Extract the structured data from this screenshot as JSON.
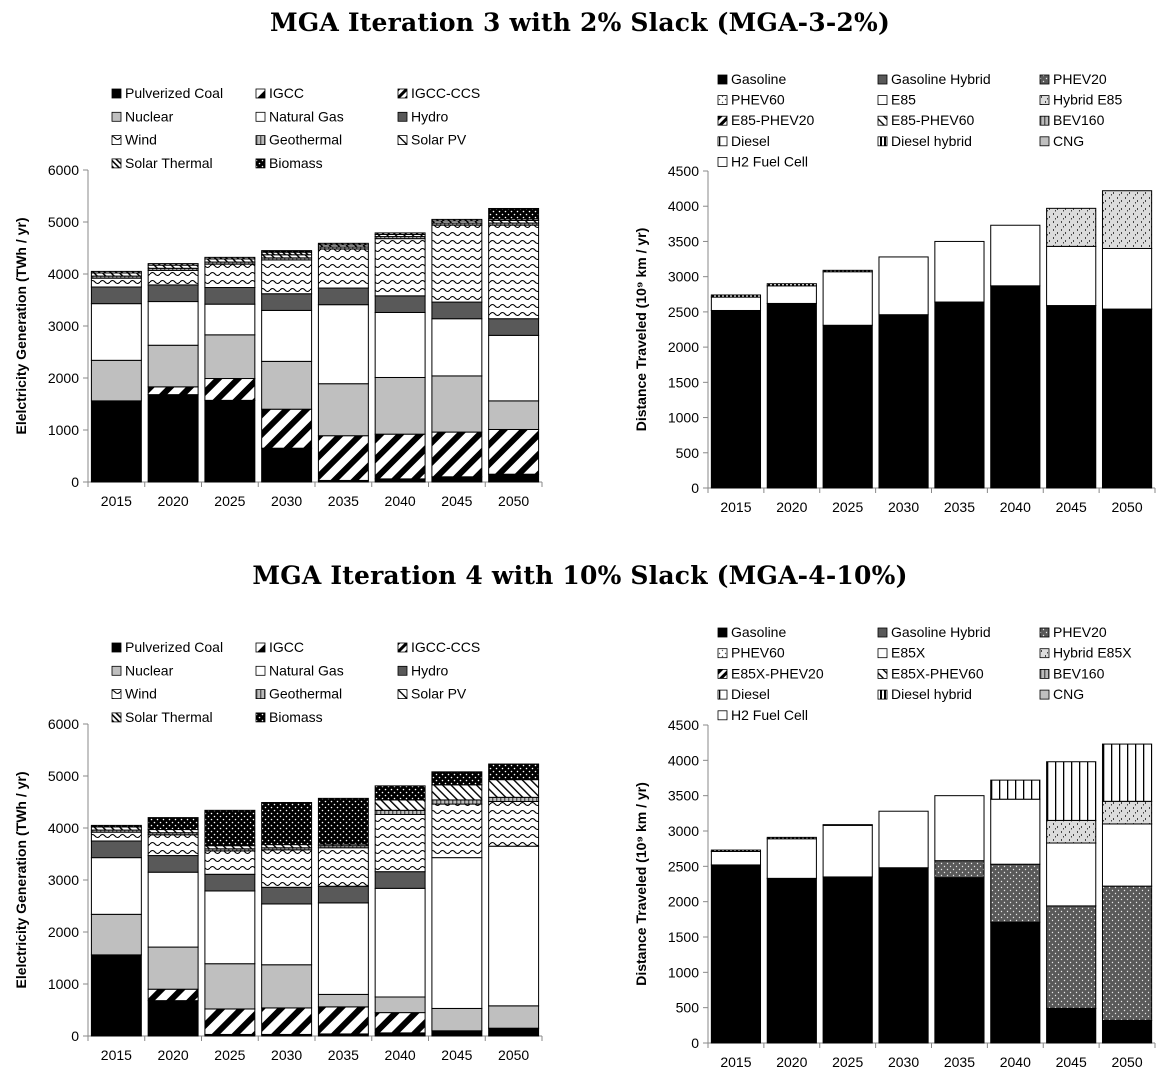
{
  "titles": {
    "top": "MGA Iteration 3 with 2% Slack (MGA-3-2%)",
    "bottom": "MGA Iteration 4 with 10% Slack (MGA-4-10%)"
  },
  "chart_data": [
    {
      "id": "elec-top",
      "type": "bar",
      "stacked": true,
      "title": "",
      "xlabel": "",
      "ylabel": "Elelctricity Generation (TWh / yr)",
      "ylim": [
        0,
        6000
      ],
      "yticks": [
        0,
        1000,
        2000,
        3000,
        4000,
        5000,
        6000
      ],
      "categories": [
        "2015",
        "2020",
        "2025",
        "2030",
        "2035",
        "2040",
        "2045",
        "2050"
      ],
      "legend_position": "top",
      "series": [
        {
          "name": "Pulverized Coal",
          "pattern": "solid-black",
          "values": [
            1560,
            1680,
            1570,
            650,
            30,
            60,
            100,
            150
          ]
        },
        {
          "name": "IGCC",
          "pattern": "diag-wide",
          "values": [
            0,
            150,
            420,
            750,
            860,
            860,
            860,
            860
          ]
        },
        {
          "name": "IGCC-CCS",
          "pattern": "diag-dense",
          "values": [
            0,
            0,
            0,
            0,
            0,
            0,
            0,
            0
          ]
        },
        {
          "name": "Nuclear",
          "pattern": "solid-lightgray",
          "values": [
            780,
            800,
            840,
            920,
            1000,
            1090,
            1080,
            550
          ]
        },
        {
          "name": "Natural Gas",
          "pattern": "solid-white",
          "values": [
            1090,
            840,
            590,
            980,
            1520,
            1250,
            1100,
            1260
          ]
        },
        {
          "name": "Hydro",
          "pattern": "solid-darkgray",
          "values": [
            320,
            320,
            320,
            320,
            320,
            320,
            320,
            320
          ]
        },
        {
          "name": "Wind",
          "pattern": "wave",
          "values": [
            170,
            280,
            450,
            650,
            750,
            1100,
            1480,
            1800
          ]
        },
        {
          "name": "Geothermal",
          "pattern": "vert-gray",
          "values": [
            40,
            40,
            40,
            40,
            40,
            40,
            40,
            40
          ]
        },
        {
          "name": "Solar PV",
          "pattern": "diag-back",
          "values": [
            60,
            60,
            60,
            60,
            40,
            40,
            40,
            50
          ]
        },
        {
          "name": "Solar Thermal",
          "pattern": "diag-back-dense",
          "values": [
            30,
            30,
            30,
            50,
            30,
            30,
            30,
            30
          ]
        },
        {
          "name": "Biomass",
          "pattern": "dots-black",
          "values": [
            0,
            0,
            0,
            30,
            0,
            0,
            0,
            200
          ]
        }
      ]
    },
    {
      "id": "vmt-top",
      "type": "bar",
      "stacked": true,
      "title": "",
      "xlabel": "",
      "ylabel": "Distance Traveled (10⁹ km / yr)",
      "ylim": [
        0,
        4500
      ],
      "yticks": [
        0,
        500,
        1000,
        1500,
        2000,
        2500,
        3000,
        3500,
        4000,
        4500
      ],
      "categories": [
        "2015",
        "2020",
        "2025",
        "2030",
        "2035",
        "2040",
        "2045",
        "2050"
      ],
      "legend_position": "top",
      "series": [
        {
          "name": "Gasoline",
          "pattern": "solid-black",
          "values": [
            2520,
            2620,
            2310,
            2460,
            2640,
            2870,
            2590,
            2540
          ]
        },
        {
          "name": "Gasoline Hybrid",
          "pattern": "solid-darkgray",
          "values": [
            0,
            0,
            0,
            0,
            0,
            0,
            0,
            0
          ]
        },
        {
          "name": "PHEV20",
          "pattern": "dots-gray",
          "values": [
            0,
            0,
            0,
            0,
            0,
            0,
            0,
            0
          ]
        },
        {
          "name": "PHEV60",
          "pattern": "dots-white",
          "values": [
            0,
            0,
            0,
            0,
            0,
            0,
            0,
            0
          ]
        },
        {
          "name": "E85",
          "pattern": "solid-white",
          "values": [
            190,
            250,
            760,
            820,
            860,
            860,
            840,
            860
          ]
        },
        {
          "name": "Hybrid E85",
          "pattern": "speckle",
          "values": [
            0,
            0,
            0,
            0,
            0,
            0,
            540,
            820
          ]
        },
        {
          "name": "E85-PHEV20",
          "pattern": "diag-dense",
          "values": [
            0,
            0,
            0,
            0,
            0,
            0,
            0,
            0
          ]
        },
        {
          "name": "E85-PHEV60",
          "pattern": "diag-back",
          "values": [
            0,
            0,
            0,
            0,
            0,
            0,
            0,
            0
          ]
        },
        {
          "name": "BEV160",
          "pattern": "vert-gray",
          "values": [
            0,
            0,
            0,
            0,
            0,
            0,
            0,
            0
          ]
        },
        {
          "name": "Diesel",
          "pattern": "vert-lines",
          "values": [
            0,
            0,
            0,
            0,
            0,
            0,
            0,
            0
          ]
        },
        {
          "name": "Diesel hybrid",
          "pattern": "vert-dense",
          "values": [
            30,
            30,
            20,
            0,
            0,
            0,
            0,
            0
          ]
        },
        {
          "name": "CNG",
          "pattern": "solid-lightgray",
          "values": [
            0,
            0,
            0,
            0,
            0,
            0,
            0,
            0
          ]
        },
        {
          "name": "H2 Fuel Cell",
          "pattern": "solid-white",
          "values": [
            0,
            0,
            0,
            0,
            0,
            0,
            0,
            0
          ]
        }
      ]
    },
    {
      "id": "elec-bottom",
      "type": "bar",
      "stacked": true,
      "title": "",
      "xlabel": "",
      "ylabel": "Elelctricity Generation (TWh / yr)",
      "ylim": [
        0,
        6000
      ],
      "yticks": [
        0,
        1000,
        2000,
        3000,
        4000,
        5000,
        6000
      ],
      "categories": [
        "2015",
        "2020",
        "2025",
        "2030",
        "2035",
        "2040",
        "2045",
        "2050"
      ],
      "legend_position": "top",
      "series": [
        {
          "name": "Pulverized Coal",
          "pattern": "solid-black",
          "values": [
            1560,
            680,
            30,
            30,
            40,
            60,
            100,
            150
          ]
        },
        {
          "name": "IGCC",
          "pattern": "diag-wide",
          "values": [
            0,
            220,
            490,
            510,
            520,
            390,
            0,
            0
          ]
        },
        {
          "name": "IGCC-CCS",
          "pattern": "diag-dense",
          "values": [
            0,
            0,
            0,
            0,
            0,
            0,
            0,
            0
          ]
        },
        {
          "name": "Nuclear",
          "pattern": "solid-lightgray",
          "values": [
            780,
            810,
            870,
            830,
            240,
            300,
            430,
            430
          ]
        },
        {
          "name": "Natural Gas",
          "pattern": "solid-white",
          "values": [
            1090,
            1440,
            1400,
            1170,
            1760,
            2090,
            2900,
            3070
          ]
        },
        {
          "name": "Hydro",
          "pattern": "solid-darkgray",
          "values": [
            320,
            320,
            320,
            320,
            320,
            320,
            0,
            0
          ]
        },
        {
          "name": "Wind",
          "pattern": "wave",
          "values": [
            170,
            400,
            450,
            720,
            740,
            1100,
            1030,
            860
          ]
        },
        {
          "name": "Geothermal",
          "pattern": "vert-gray",
          "values": [
            40,
            40,
            40,
            40,
            40,
            80,
            80,
            80
          ]
        },
        {
          "name": "Solar PV",
          "pattern": "diag-back",
          "values": [
            60,
            60,
            60,
            60,
            30,
            200,
            290,
            340
          ]
        },
        {
          "name": "Solar Thermal",
          "pattern": "diag-back-dense",
          "values": [
            0,
            0,
            0,
            0,
            0,
            0,
            0,
            0
          ]
        },
        {
          "name": "Biomass",
          "pattern": "dots-black",
          "values": [
            30,
            230,
            680,
            810,
            880,
            270,
            250,
            300
          ]
        }
      ]
    },
    {
      "id": "vmt-bottom",
      "type": "bar",
      "stacked": true,
      "title": "",
      "xlabel": "",
      "ylabel": "Distance Traveled (10⁹ km / yr)",
      "ylim": [
        0,
        4500
      ],
      "yticks": [
        0,
        500,
        1000,
        1500,
        2000,
        2500,
        3000,
        3500,
        4000,
        4500
      ],
      "categories": [
        "2015",
        "2020",
        "2025",
        "2030",
        "2035",
        "2040",
        "2045",
        "2050"
      ],
      "legend_position": "top",
      "series": [
        {
          "name": "Gasoline",
          "pattern": "solid-black",
          "values": [
            2520,
            2330,
            2350,
            2480,
            2340,
            1710,
            490,
            320
          ]
        },
        {
          "name": "Gasoline Hybrid",
          "pattern": "solid-darkgray",
          "values": [
            0,
            0,
            0,
            0,
            0,
            0,
            0,
            0
          ]
        },
        {
          "name": "PHEV20",
          "pattern": "dots-gray",
          "values": [
            0,
            0,
            0,
            0,
            240,
            820,
            1450,
            1900
          ]
        },
        {
          "name": "PHEV60",
          "pattern": "dots-white",
          "values": [
            0,
            0,
            0,
            0,
            0,
            0,
            0,
            0
          ]
        },
        {
          "name": "E85X",
          "pattern": "solid-white",
          "values": [
            190,
            560,
            730,
            800,
            920,
            920,
            890,
            880
          ]
        },
        {
          "name": "Hybrid E85X",
          "pattern": "speckle",
          "values": [
            0,
            0,
            0,
            0,
            0,
            0,
            320,
            320
          ]
        },
        {
          "name": "E85X-PHEV20",
          "pattern": "diag-dense",
          "values": [
            0,
            0,
            0,
            0,
            0,
            0,
            0,
            0
          ]
        },
        {
          "name": "E85X-PHEV60",
          "pattern": "diag-back",
          "values": [
            0,
            0,
            0,
            0,
            0,
            0,
            0,
            0
          ]
        },
        {
          "name": "BEV160",
          "pattern": "vert-gray",
          "values": [
            0,
            0,
            0,
            0,
            0,
            0,
            0,
            0
          ]
        },
        {
          "name": "Diesel",
          "pattern": "vert-lines",
          "values": [
            0,
            0,
            0,
            0,
            0,
            270,
            830,
            810
          ]
        },
        {
          "name": "Diesel hybrid",
          "pattern": "vert-dense",
          "values": [
            20,
            20,
            10,
            0,
            0,
            0,
            0,
            0
          ]
        },
        {
          "name": "CNG",
          "pattern": "solid-lightgray",
          "values": [
            0,
            0,
            0,
            0,
            0,
            0,
            0,
            0
          ]
        },
        {
          "name": "H2 Fuel Cell",
          "pattern": "solid-white",
          "values": [
            0,
            0,
            0,
            0,
            0,
            0,
            0,
            0
          ]
        }
      ]
    }
  ]
}
